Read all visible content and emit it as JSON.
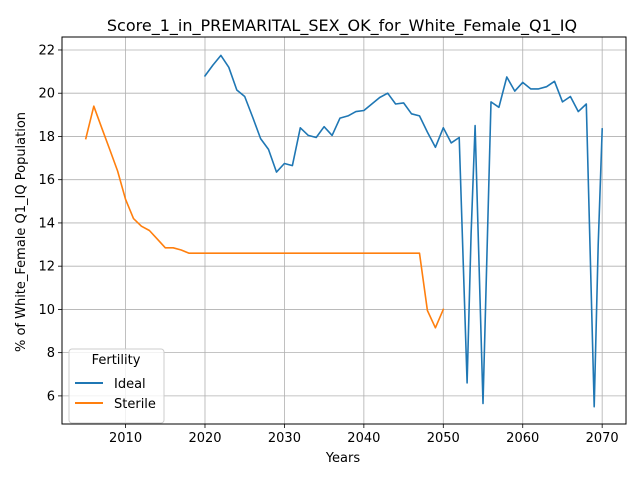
{
  "chart_data": {
    "type": "line",
    "title": "Score_1_in_PREMARITAL_SEX_OK_for_White_Female_Q1_IQ",
    "xlabel": "Years",
    "ylabel": "% of White_Female Q1_IQ Population",
    "xlim": [
      2002,
      2073
    ],
    "ylim": [
      4.7,
      22.6
    ],
    "xticks": [
      2010,
      2020,
      2030,
      2040,
      2050,
      2060,
      2070
    ],
    "yticks": [
      6,
      8,
      10,
      12,
      14,
      16,
      18,
      20,
      22
    ],
    "grid": true,
    "legend": {
      "title": "Fertility",
      "position": "lower-left"
    },
    "series": [
      {
        "name": "Ideal",
        "color": "#1f77b4",
        "x": [
          2020,
          2021,
          2022,
          2023,
          2024,
          2025,
          2026,
          2027,
          2028,
          2029,
          2030,
          2031,
          2032,
          2033,
          2034,
          2035,
          2036,
          2037,
          2038,
          2039,
          2040,
          2041,
          2042,
          2043,
          2044,
          2045,
          2046,
          2047,
          2048,
          2049,
          2050,
          2051,
          2052,
          2053,
          2053.5,
          2054,
          2055,
          2056,
          2057,
          2058,
          2059,
          2060,
          2061,
          2062,
          2063,
          2064,
          2065,
          2066,
          2067,
          2068,
          2069,
          2069.5,
          2070
        ],
        "y": [
          20.8,
          21.3,
          21.75,
          21.2,
          20.15,
          19.85,
          18.9,
          17.9,
          17.4,
          16.35,
          16.75,
          16.65,
          18.4,
          18.05,
          17.95,
          18.45,
          18.05,
          18.85,
          18.95,
          19.15,
          19.2,
          19.5,
          19.8,
          20.0,
          19.5,
          19.55,
          19.05,
          18.95,
          18.2,
          17.5,
          18.4,
          17.7,
          17.95,
          6.6,
          13.5,
          18.5,
          5.65,
          19.6,
          19.35,
          20.75,
          20.1,
          20.5,
          20.2,
          20.2,
          20.3,
          20.55,
          19.6,
          19.85,
          19.15,
          19.5,
          5.5,
          13.0,
          18.35
        ]
      },
      {
        "name": "Sterile",
        "color": "#ff7f0e",
        "x": [
          2005,
          2006,
          2007,
          2008,
          2009,
          2010,
          2011,
          2012,
          2013,
          2014,
          2015,
          2016,
          2017,
          2018,
          2019,
          2020,
          2025,
          2030,
          2035,
          2040,
          2045,
          2046,
          2047,
          2048,
          2049,
          2050
        ],
        "y": [
          17.9,
          19.4,
          18.4,
          17.4,
          16.4,
          15.1,
          14.2,
          13.85,
          13.65,
          13.25,
          12.85,
          12.85,
          12.75,
          12.6,
          12.6,
          12.6,
          12.6,
          12.6,
          12.6,
          12.6,
          12.6,
          12.6,
          12.6,
          9.95,
          9.15,
          10.0
        ]
      }
    ]
  }
}
